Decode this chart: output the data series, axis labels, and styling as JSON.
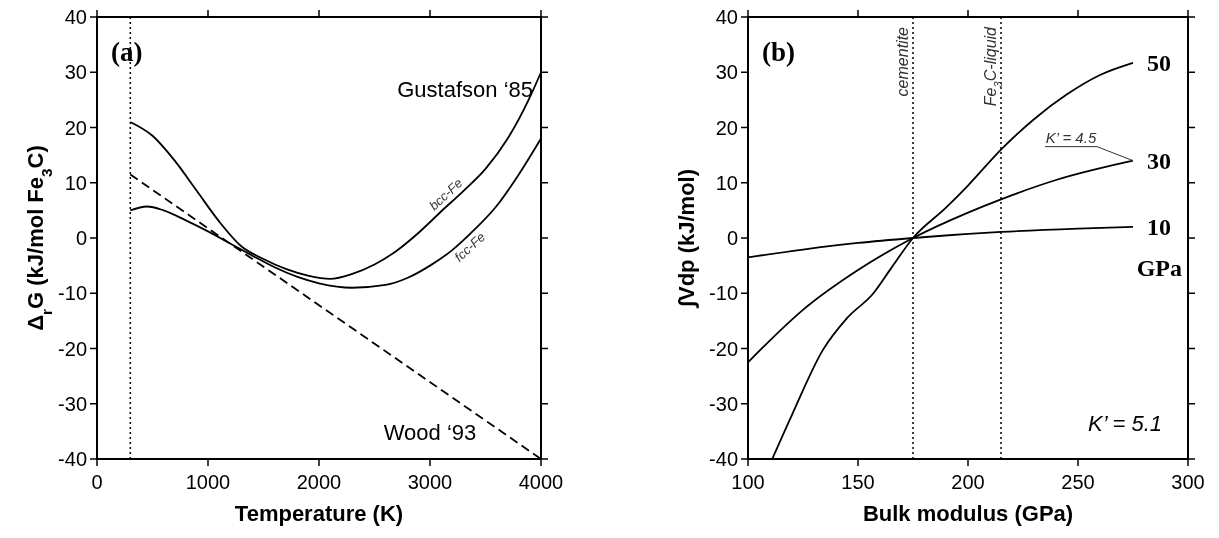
{
  "chart_data": [
    {
      "type": "line",
      "xlabel": "Temperature (K)",
      "ylabel": "Δ$_{r}$G (kJ/mol Fe$_{3}$C)",
      "xlim": [
        0,
        4000
      ],
      "ylim": [
        -40,
        40
      ],
      "xticks": [
        0,
        1000,
        2000,
        3000,
        4000
      ],
      "yticks": [
        -40,
        -30,
        -20,
        -10,
        0,
        10,
        20,
        30,
        40
      ],
      "grid": false,
      "annotations": [
        "(a)",
        "Gustafson ‘85",
        "Wood ‘93"
      ],
      "ref_lines": [
        {
          "axis": "x",
          "value": 300,
          "line_style": "dotted",
          "color": "#000000"
        }
      ],
      "series": [
        {
          "name": "bcc-Fe",
          "color": "#000000",
          "line_style": "solid",
          "x": [
            300,
            500,
            700,
            900,
            1100,
            1300,
            1500,
            1700,
            1900,
            2100,
            2300,
            2500,
            2700,
            2900,
            3100,
            3300,
            3500,
            3700,
            3900,
            4000
          ],
          "values": [
            21,
            18.5,
            14,
            8.5,
            3,
            -1.5,
            -3.8,
            -5.6,
            -6.8,
            -7.4,
            -6.5,
            -4.8,
            -2.3,
            1,
            4.8,
            8.5,
            12.5,
            18,
            25.5,
            30
          ]
        },
        {
          "name": "fcc-Fe",
          "color": "#000000",
          "line_style": "solid",
          "x": [
            300,
            450,
            600,
            800,
            1000,
            1200,
            1400,
            1600,
            1800,
            2000,
            2300,
            2600,
            2800,
            3000,
            3200,
            3400,
            3600,
            3800,
            4000
          ],
          "values": [
            5,
            5.7,
            5,
            3.2,
            1.2,
            -1,
            -3.2,
            -5.3,
            -7,
            -8.2,
            -9,
            -8.5,
            -7.2,
            -5,
            -2.2,
            1.5,
            5.8,
            11.5,
            18
          ]
        },
        {
          "color": "#000000",
          "line_style": "dashed",
          "x": [
            300,
            4000
          ],
          "values": [
            11.5,
            -40
          ]
        }
      ]
    },
    {
      "type": "line",
      "xlabel": "Bulk modulus (GPa)",
      "ylabel": "∫Vdp (kJ/mol)",
      "xlim": [
        100,
        300
      ],
      "ylim": [
        -40,
        40
      ],
      "xticks": [
        100,
        150,
        200,
        250,
        300
      ],
      "yticks": [
        -40,
        -30,
        -20,
        -10,
        0,
        10,
        20,
        30,
        40
      ],
      "grid": false,
      "legend": "right",
      "annotations": [
        "(b)",
        "GPa",
        "K’ = 5.1",
        {
          "text": "K’ = 4.5",
          "x": 275,
          "y": 14
        }
      ],
      "ref_lines": [
        {
          "axis": "x",
          "value": 175,
          "label": "cementite",
          "line_style": "dotted",
          "color": "#000000"
        },
        {
          "axis": "x",
          "value": 215,
          "label": "Fe$_{3}$C-liquid",
          "line_style": "dotted",
          "color": "#000000"
        }
      ],
      "series": [
        {
          "name": "50",
          "color": "#000000",
          "line_style": "solid",
          "x": [
            111,
            120,
            134,
            145,
            157,
            165,
            175,
            190,
            200,
            215,
            230,
            245,
            260,
            275
          ],
          "values": [
            -40,
            -32,
            -20.3,
            -14.5,
            -10,
            -5.5,
            0,
            5.5,
            9.5,
            16,
            21.5,
            26,
            29.5,
            31.7
          ]
        },
        {
          "name": "30",
          "color": "#000000",
          "line_style": "solid",
          "x": [
            100,
            125,
            150,
            175,
            200,
            215,
            240,
            275
          ],
          "values": [
            -22.5,
            -13,
            -5.8,
            0,
            4.6,
            7,
            10.5,
            14
          ]
        },
        {
          "name": "10",
          "color": "#000000",
          "line_style": "solid",
          "x": [
            100,
            125,
            150,
            175,
            215,
            250,
            275
          ],
          "values": [
            -3.5,
            -2.1,
            -0.9,
            0,
            1.1,
            1.7,
            2
          ]
        }
      ]
    }
  ]
}
